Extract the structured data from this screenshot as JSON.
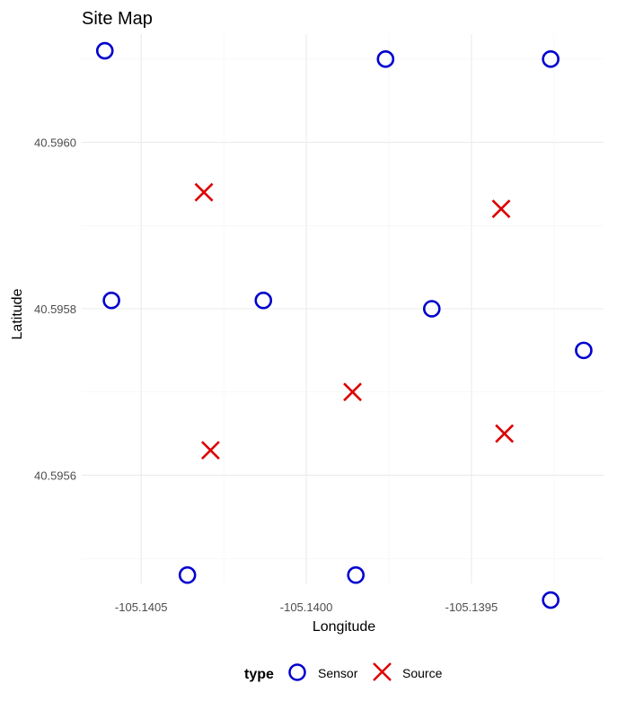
{
  "chart_data": {
    "type": "scatter",
    "title": "Site Map",
    "xlabel": "Longitude",
    "ylabel": "Latitude",
    "xlim": [
      -105.14068,
      -105.1391
    ],
    "ylim": [
      40.59547,
      40.59613
    ],
    "x_ticks": [
      -105.1405,
      -105.14,
      -105.1395
    ],
    "x_tick_labels": [
      "-105.1405",
      "-105.1400",
      "-105.1395"
    ],
    "y_ticks": [
      40.5956,
      40.5958,
      40.596
    ],
    "y_tick_labels": [
      "40.5956",
      "40.5958",
      "40.5960"
    ],
    "grid": true,
    "legend": {
      "title": "type",
      "position": "bottom",
      "entries": [
        "Sensor",
        "Source"
      ]
    },
    "series": [
      {
        "name": "Sensor",
        "marker": "circle",
        "color": "#0000cd",
        "points": [
          {
            "x": -105.14061,
            "y": 40.59611
          },
          {
            "x": -105.14059,
            "y": 40.59581
          },
          {
            "x": -105.14036,
            "y": 40.59548
          },
          {
            "x": -105.14013,
            "y": 40.59581
          },
          {
            "x": -105.13985,
            "y": 40.59548
          },
          {
            "x": -105.13976,
            "y": 40.5961
          },
          {
            "x": -105.13962,
            "y": 40.5958
          },
          {
            "x": -105.13926,
            "y": 40.5961
          },
          {
            "x": -105.13926,
            "y": 40.59545
          },
          {
            "x": -105.13916,
            "y": 40.59575
          }
        ]
      },
      {
        "name": "Source",
        "marker": "x",
        "color": "#dd0000",
        "points": [
          {
            "x": -105.14031,
            "y": 40.59594
          },
          {
            "x": -105.14029,
            "y": 40.59563
          },
          {
            "x": -105.13986,
            "y": 40.5957
          },
          {
            "x": -105.13941,
            "y": 40.59592
          },
          {
            "x": -105.1394,
            "y": 40.59565
          }
        ]
      }
    ]
  }
}
